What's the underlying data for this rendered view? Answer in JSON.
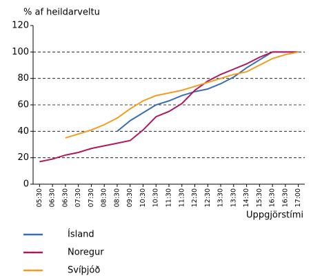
{
  "chart_data": {
    "type": "line",
    "ylabel": "% af heildarveltu",
    "xlabel": "Uppgjörstími",
    "categories": [
      "05:30",
      "06:30",
      "06:30",
      "07:30",
      "07:30",
      "08:30",
      "08:30",
      "09:30",
      "10:30",
      "10:30",
      "11:30",
      "11:30",
      "12:30",
      "12:30",
      "13:30",
      "13:30",
      "14:30",
      "15:30",
      "16:30",
      "16:30",
      "17:00"
    ],
    "series": [
      {
        "name": "Ísland",
        "color": "#3a6db3",
        "values": [
          null,
          null,
          null,
          null,
          null,
          null,
          40,
          48,
          54,
          60,
          63,
          67,
          70,
          72,
          76,
          81,
          88,
          94,
          100,
          100,
          100
        ]
      },
      {
        "name": "Noregur",
        "color": "#b0185e",
        "values": [
          17,
          19,
          22,
          24,
          27,
          29,
          31,
          33,
          41,
          51,
          55,
          61,
          71,
          78,
          83,
          87,
          91,
          96,
          100,
          100,
          100
        ]
      },
      {
        "name": "Svíþjóð",
        "color": "#f39b1f",
        "values": [
          null,
          null,
          35,
          38,
          41,
          45,
          50,
          57,
          63,
          67,
          69,
          71,
          74,
          77,
          80,
          83,
          85,
          90,
          95,
          98,
          100
        ]
      }
    ],
    "ylim": [
      0,
      120
    ],
    "yticks": [
      0,
      20,
      40,
      60,
      80,
      100,
      120
    ],
    "grid": true
  }
}
